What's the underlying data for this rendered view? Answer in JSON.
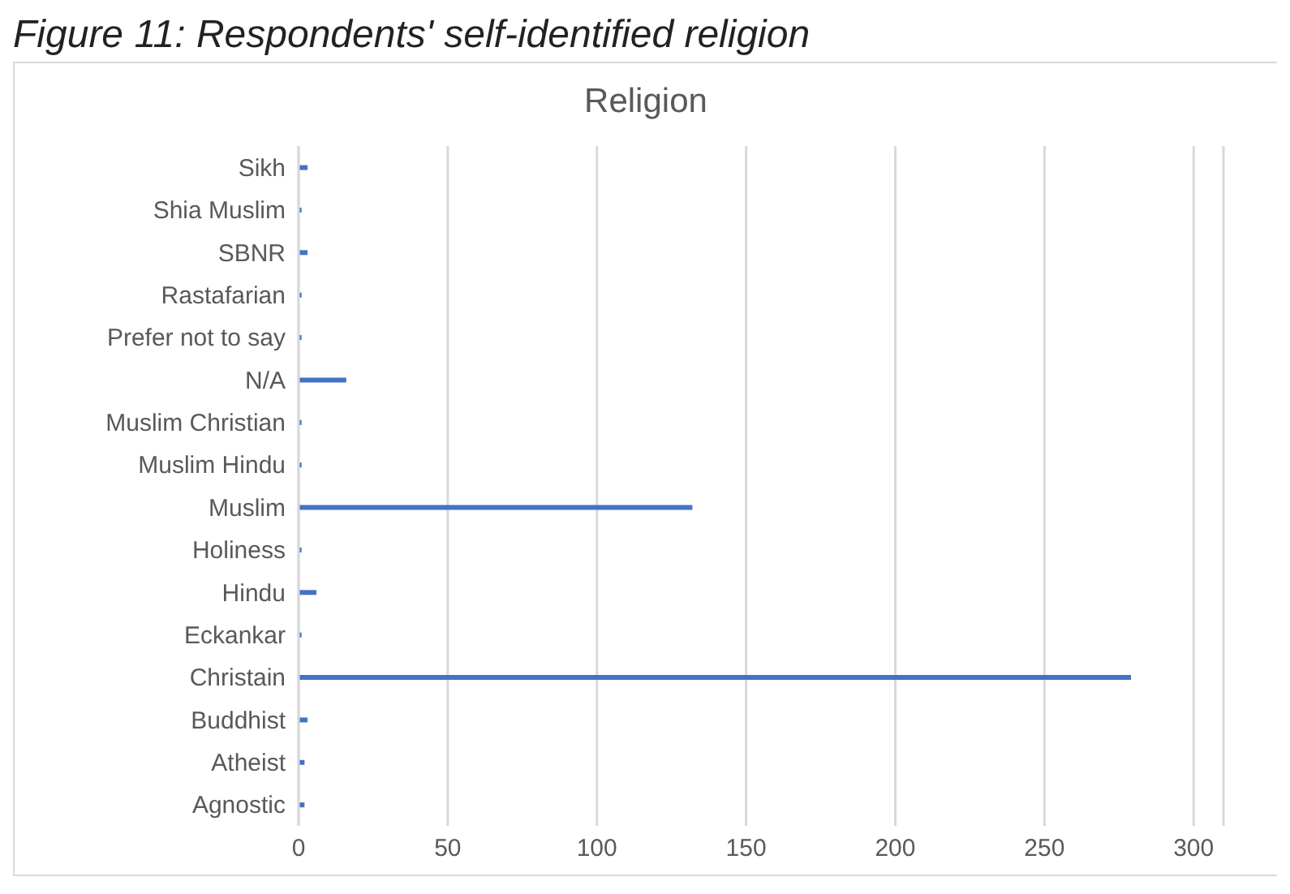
{
  "chart_data": {
    "type": "bar",
    "orientation": "horizontal",
    "title": "Religion",
    "annotations": [
      "Figure 11: Respondents' self-identified religion"
    ],
    "categories": [
      "Sikh",
      "Shia Muslim",
      "SBNR",
      "Rastafarian",
      "Prefer not to say",
      "N/A",
      "Muslim Christian",
      "Muslim Hindu",
      "Muslim",
      "Holiness",
      "Hindu",
      "Eckankar",
      "Christain",
      "Buddhist",
      "Atheist",
      "Agnostic"
    ],
    "values": [
      3,
      1,
      3,
      1,
      1,
      16,
      1,
      1,
      132,
      1,
      6,
      1,
      279,
      3,
      2,
      2
    ],
    "color": "#4472c4",
    "xlim": [
      0,
      310
    ],
    "xticks": [
      0,
      50,
      100,
      150,
      200,
      250,
      300
    ],
    "grid": "x"
  }
}
